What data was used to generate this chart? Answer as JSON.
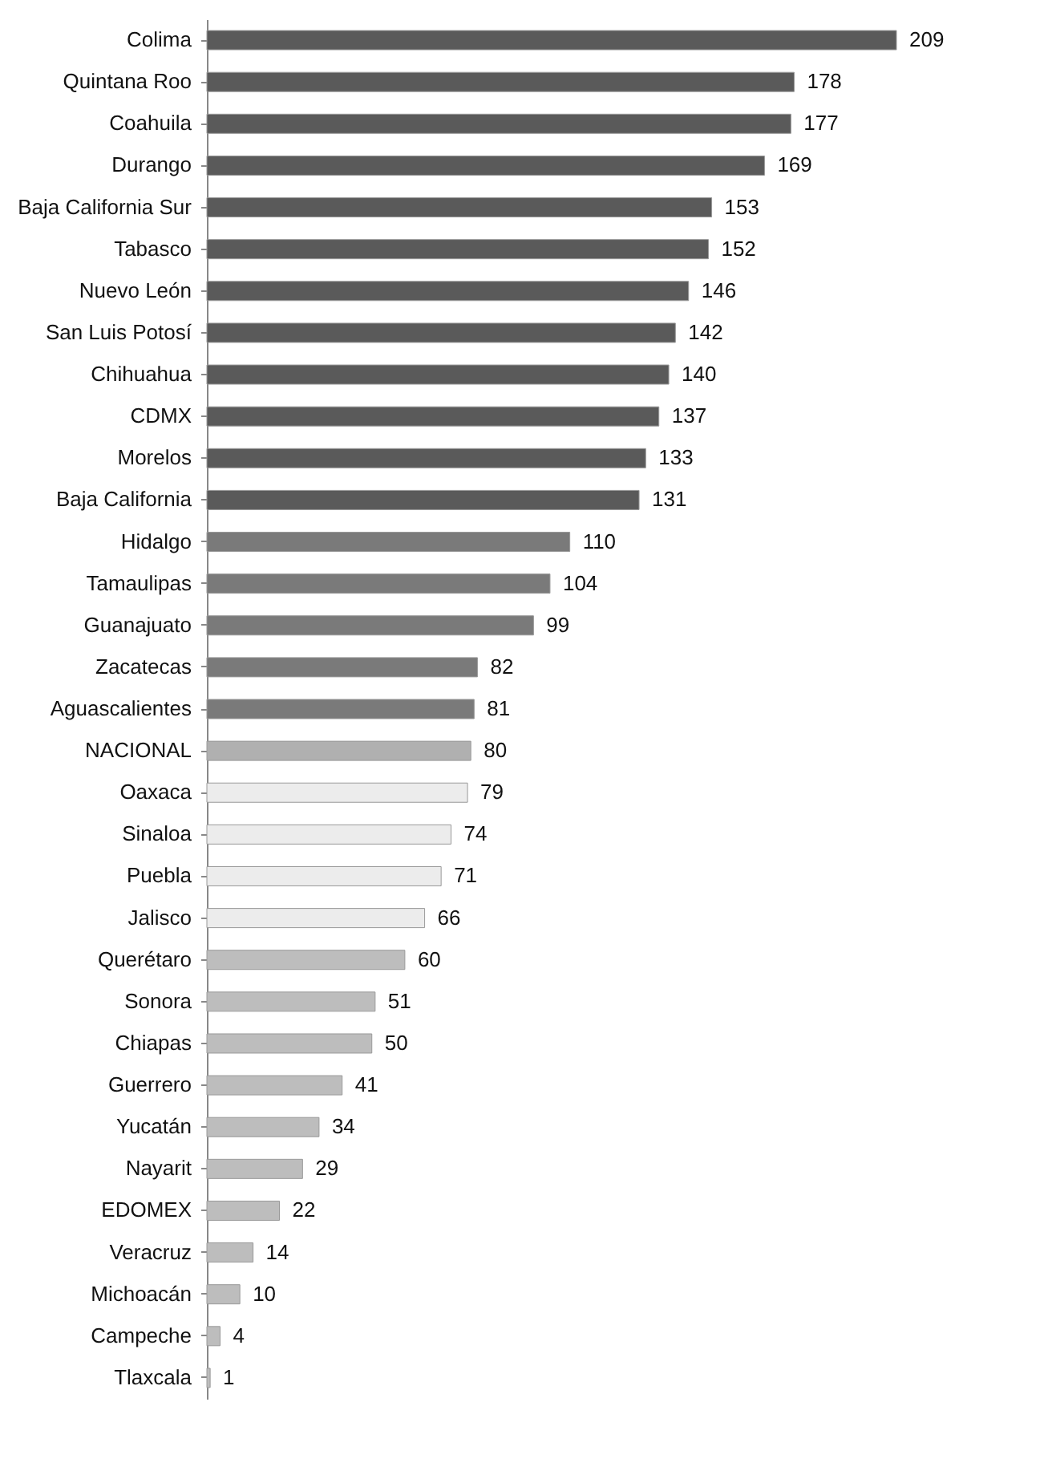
{
  "chart_data": {
    "type": "bar",
    "orientation": "horizontal",
    "data_labels": true,
    "grid": false,
    "categories": [
      "Colima",
      "Quintana Roo",
      "Coahuila",
      "Durango",
      "Baja California Sur",
      "Tabasco",
      "Nuevo León",
      "San Luis Potosí",
      "Chihuahua",
      "CDMX",
      "Morelos",
      "Baja California",
      "Hidalgo",
      "Tamaulipas",
      "Guanajuato",
      "Zacatecas",
      "Aguascalientes",
      "NACIONAL",
      "Oaxaca",
      "Sinaloa",
      "Puebla",
      "Jalisco",
      "Querétaro",
      "Sonora",
      "Chiapas",
      "Guerrero",
      "Yucatán",
      "Nayarit",
      "EDOMEX",
      "Veracruz",
      "Michoacán",
      "Campeche",
      "Tlaxcala"
    ],
    "values": [
      209,
      178,
      177,
      169,
      153,
      152,
      146,
      142,
      140,
      137,
      133,
      131,
      110,
      104,
      99,
      82,
      81,
      80,
      79,
      74,
      71,
      66,
      60,
      51,
      50,
      41,
      34,
      29,
      22,
      14,
      10,
      4,
      1
    ],
    "colors": [
      "#5a5a5a",
      "#5a5a5a",
      "#5a5a5a",
      "#5a5a5a",
      "#5a5a5a",
      "#5a5a5a",
      "#5a5a5a",
      "#5a5a5a",
      "#5a5a5a",
      "#5a5a5a",
      "#5a5a5a",
      "#5a5a5a",
      "#7a7a7a",
      "#7a7a7a",
      "#7a7a7a",
      "#7a7a7a",
      "#7a7a7a",
      "#b0b0b0",
      "#ececec",
      "#ececec",
      "#ececec",
      "#ececec",
      "#bdbdbd",
      "#bdbdbd",
      "#bdbdbd",
      "#bdbdbd",
      "#bdbdbd",
      "#bdbdbd",
      "#bdbdbd",
      "#bdbdbd",
      "#bdbdbd",
      "#bdbdbd",
      "#bdbdbd"
    ]
  }
}
